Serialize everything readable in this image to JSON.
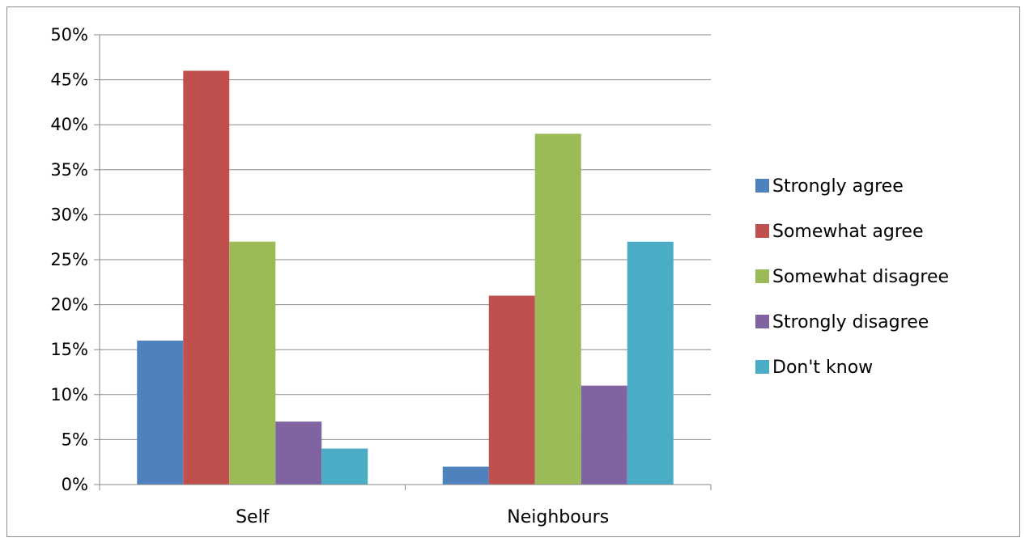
{
  "chart_data": {
    "type": "bar",
    "title": "",
    "xlabel": "",
    "ylabel": "",
    "categories": [
      "Self",
      "Neighbours"
    ],
    "series": [
      {
        "name": "Strongly agree",
        "color": "#4f81bd",
        "values": [
          16,
          2
        ]
      },
      {
        "name": "Somewhat agree",
        "color": "#c0504d",
        "values": [
          46,
          21
        ]
      },
      {
        "name": "Somewhat disagree",
        "color": "#9bbb59",
        "values": [
          27,
          39
        ]
      },
      {
        "name": "Strongly disagree",
        "color": "#8064a2",
        "values": [
          7,
          11
        ]
      },
      {
        "name": "Don't know",
        "color": "#4bacc6",
        "values": [
          4,
          27
        ]
      }
    ],
    "ylim": [
      0,
      50
    ],
    "yticks": [
      0,
      5,
      10,
      15,
      20,
      25,
      30,
      35,
      40,
      45,
      50
    ],
    "ytick_labels": [
      "0%",
      "5%",
      "10%",
      "15%",
      "20%",
      "25%",
      "30%",
      "35%",
      "40%",
      "45%",
      "50%"
    ],
    "grid": true,
    "legend_position": "right"
  }
}
